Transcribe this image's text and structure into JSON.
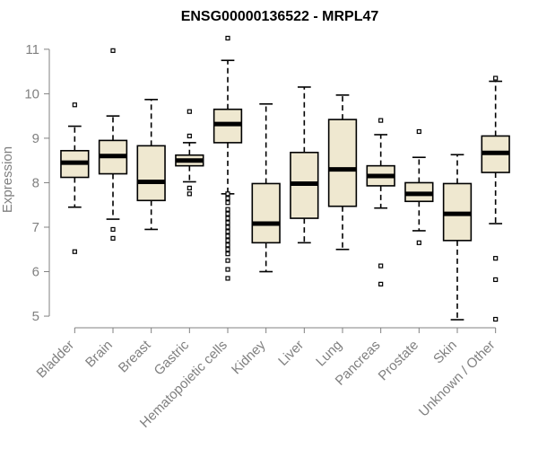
{
  "chart_data": {
    "type": "boxplot",
    "title": "ENSG00000136522 - MRPL47",
    "ylabel": "Expression",
    "xlabel": "",
    "ylim": [
      4.9,
      11.3
    ],
    "yticks": [
      5,
      6,
      7,
      8,
      9,
      10,
      11
    ],
    "grid": false,
    "legend": "none",
    "colors": {
      "box_fill": "#efe8d0",
      "stroke": "#000000",
      "axis": "#808080",
      "label": "#808080"
    },
    "categories": [
      "Bladder",
      "Brain",
      "Breast",
      "Gastric",
      "Hematopoietic cells",
      "Kidney",
      "Liver",
      "Lung",
      "Pancreas",
      "Prostate",
      "Skin",
      "Unknown / Other"
    ],
    "boxes": [
      {
        "category": "Bladder",
        "whisker_low": 7.45,
        "q1": 8.12,
        "median": 8.45,
        "q3": 8.72,
        "whisker_high": 9.27,
        "outliers": [
          6.45,
          9.75
        ]
      },
      {
        "category": "Brain",
        "whisker_low": 7.18,
        "q1": 8.2,
        "median": 8.6,
        "q3": 8.95,
        "whisker_high": 9.5,
        "outliers": [
          6.75,
          6.95,
          10.97
        ]
      },
      {
        "category": "Breast",
        "whisker_low": 6.95,
        "q1": 7.6,
        "median": 8.02,
        "q3": 8.83,
        "whisker_high": 9.87,
        "outliers": []
      },
      {
        "category": "Gastric",
        "whisker_low": 8.02,
        "q1": 8.38,
        "median": 8.5,
        "q3": 8.62,
        "whisker_high": 8.9,
        "outliers": [
          7.75,
          7.88,
          9.05,
          9.6
        ]
      },
      {
        "category": "Hematopoietic cells",
        "whisker_low": 7.75,
        "q1": 8.9,
        "median": 9.32,
        "q3": 9.65,
        "whisker_high": 10.75,
        "outliers": [
          5.85,
          6.05,
          6.25,
          6.4,
          6.5,
          6.6,
          6.7,
          6.8,
          6.9,
          7.0,
          7.1,
          7.2,
          7.3,
          7.4,
          7.55,
          7.65,
          7.75,
          11.25
        ]
      },
      {
        "category": "Kidney",
        "whisker_low": 6.0,
        "q1": 6.65,
        "median": 7.08,
        "q3": 7.98,
        "whisker_high": 9.77,
        "outliers": []
      },
      {
        "category": "Liver",
        "whisker_low": 6.65,
        "q1": 7.2,
        "median": 7.98,
        "q3": 8.68,
        "whisker_high": 10.15,
        "outliers": []
      },
      {
        "category": "Lung",
        "whisker_low": 6.5,
        "q1": 7.47,
        "median": 8.3,
        "q3": 9.42,
        "whisker_high": 9.97,
        "outliers": []
      },
      {
        "category": "Pancreas",
        "whisker_low": 7.43,
        "q1": 7.93,
        "median": 8.15,
        "q3": 8.38,
        "whisker_high": 9.08,
        "outliers": [
          5.72,
          6.13,
          9.4
        ]
      },
      {
        "category": "Prostate",
        "whisker_low": 6.92,
        "q1": 7.58,
        "median": 7.75,
        "q3": 8.0,
        "whisker_high": 8.57,
        "outliers": [
          6.65,
          9.15
        ]
      },
      {
        "category": "Skin",
        "whisker_low": 4.92,
        "q1": 6.7,
        "median": 7.3,
        "q3": 7.98,
        "whisker_high": 8.63,
        "outliers": []
      },
      {
        "category": "Unknown / Other",
        "whisker_low": 7.08,
        "q1": 8.23,
        "median": 8.67,
        "q3": 9.05,
        "whisker_high": 10.28,
        "outliers": [
          4.93,
          5.82,
          6.3,
          10.35
        ]
      }
    ]
  }
}
